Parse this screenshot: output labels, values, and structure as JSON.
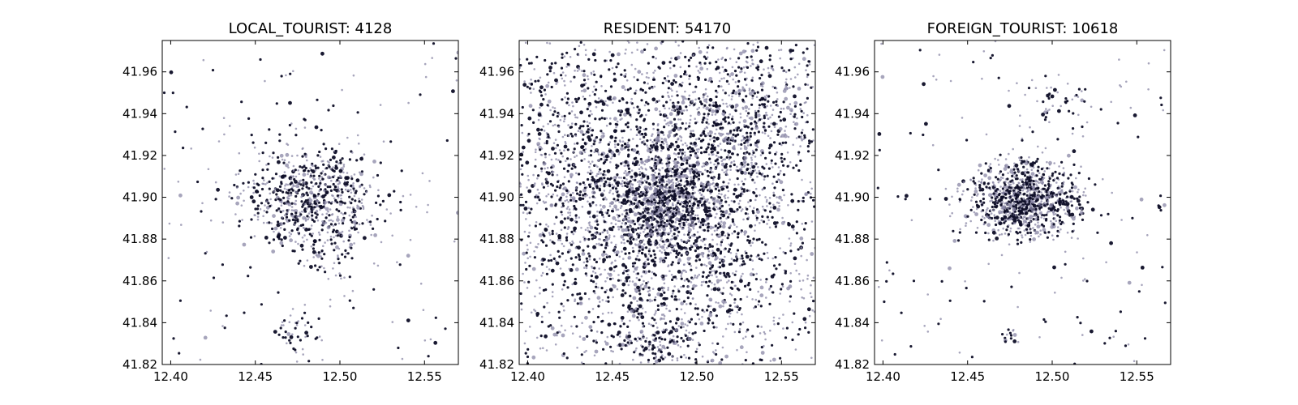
{
  "colors": {
    "dot_dark": "#0d0d26",
    "dot_light": "#8a87a6",
    "frame": "#000000",
    "background": "#ffffff"
  },
  "chart_data": [
    {
      "type": "scatter",
      "title": "LOCAL_TOURIST: 4128",
      "xlabel": "",
      "ylabel": "",
      "xlim": [
        12.395,
        12.57
      ],
      "ylim": [
        41.82,
        41.975
      ],
      "xticks": [
        "12.40",
        "12.45",
        "12.50",
        "12.55"
      ],
      "yticks": [
        "41.82",
        "41.84",
        "41.86",
        "41.88",
        "41.90",
        "41.92",
        "41.94",
        "41.96"
      ],
      "grid": false,
      "clusters": [
        {
          "cx": 12.482,
          "cy": 41.901,
          "sx": 0.02,
          "sy": 0.012,
          "count": 700
        },
        {
          "cx": 12.474,
          "cy": 41.836,
          "sx": 0.008,
          "sy": 0.005,
          "count": 40
        },
        {
          "cx": 12.495,
          "cy": 41.88,
          "sx": 0.013,
          "sy": 0.012,
          "count": 100
        }
      ],
      "background_count": 140
    },
    {
      "type": "scatter",
      "title": "RESIDENT: 54170",
      "xlabel": "",
      "ylabel": "",
      "xlim": [
        12.395,
        12.57
      ],
      "ylim": [
        41.82,
        41.975
      ],
      "xticks": [
        "12.40",
        "12.45",
        "12.50",
        "12.55"
      ],
      "yticks": [
        "41.82",
        "41.84",
        "41.86",
        "41.88",
        "41.90",
        "41.92",
        "41.94",
        "41.96"
      ],
      "grid": false,
      "clusters": [
        {
          "cx": 12.482,
          "cy": 41.898,
          "sx": 0.035,
          "sy": 0.032,
          "count": 2600
        },
        {
          "cx": 12.48,
          "cy": 41.897,
          "sx": 0.012,
          "sy": 0.01,
          "count": 500
        },
        {
          "cx": 12.475,
          "cy": 41.832,
          "sx": 0.012,
          "sy": 0.008,
          "count": 150
        },
        {
          "cx": 12.53,
          "cy": 41.94,
          "sx": 0.022,
          "sy": 0.02,
          "count": 400
        },
        {
          "cx": 12.42,
          "cy": 41.915,
          "sx": 0.014,
          "sy": 0.03,
          "count": 250
        }
      ],
      "background_count": 900
    },
    {
      "type": "scatter",
      "title": "FOREIGN_TOURIST: 10618",
      "xlabel": "",
      "ylabel": "",
      "xlim": [
        12.395,
        12.57
      ],
      "ylim": [
        41.82,
        41.975
      ],
      "xticks": [
        "12.40",
        "12.45",
        "12.50",
        "12.55"
      ],
      "yticks": [
        "41.82",
        "41.84",
        "41.86",
        "41.88",
        "41.90",
        "41.92",
        "41.94",
        "41.96"
      ],
      "grid": false,
      "clusters": [
        {
          "cx": 12.483,
          "cy": 41.899,
          "sx": 0.016,
          "sy": 0.009,
          "count": 1000
        },
        {
          "cx": 12.475,
          "cy": 41.834,
          "sx": 0.003,
          "sy": 0.002,
          "count": 15
        },
        {
          "cx": 12.5,
          "cy": 41.945,
          "sx": 0.01,
          "sy": 0.01,
          "count": 50
        }
      ],
      "background_count": 160
    }
  ]
}
